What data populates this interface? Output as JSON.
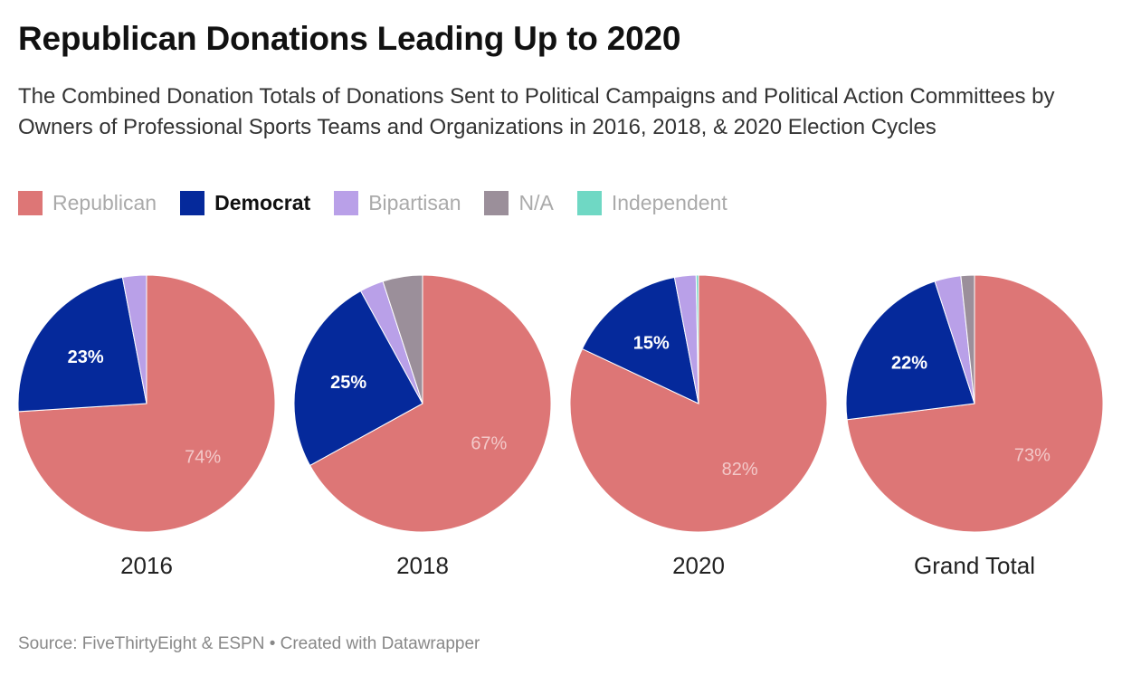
{
  "title": "Republican Donations Leading Up to 2020",
  "subtitle": "The Combined Donation Totals of Donations Sent to Political Campaigns and Political Action Committees by Owners of Professional Sports Teams and Organizations in 2016, 2018, & 2020 Election Cycles",
  "legend": [
    {
      "label": "Republican",
      "color": "#dd7676",
      "active": false
    },
    {
      "label": "Democrat",
      "color": "#05299b",
      "active": true
    },
    {
      "label": "Bipartisan",
      "color": "#b9a0e8",
      "active": false
    },
    {
      "label": "N/A",
      "color": "#9b8f9a",
      "active": false
    },
    {
      "label": "Independent",
      "color": "#6fd8c4",
      "active": false
    }
  ],
  "source": "Source: FiveThirtyEight & ESPN • Created with Datawrapper",
  "chart_data": [
    {
      "type": "pie",
      "title": "2016",
      "slices": [
        {
          "name": "Republican",
          "value": 74,
          "label": "74%"
        },
        {
          "name": "Democrat",
          "value": 23,
          "label": "23%"
        },
        {
          "name": "Bipartisan",
          "value": 3,
          "label": ""
        },
        {
          "name": "N/A",
          "value": 0,
          "label": ""
        },
        {
          "name": "Independent",
          "value": 0,
          "label": ""
        }
      ]
    },
    {
      "type": "pie",
      "title": "2018",
      "slices": [
        {
          "name": "Republican",
          "value": 67,
          "label": "67%"
        },
        {
          "name": "Democrat",
          "value": 25,
          "label": "25%"
        },
        {
          "name": "Bipartisan",
          "value": 3,
          "label": ""
        },
        {
          "name": "N/A",
          "value": 5,
          "label": ""
        },
        {
          "name": "Independent",
          "value": 0,
          "label": ""
        }
      ]
    },
    {
      "type": "pie",
      "title": "2020",
      "slices": [
        {
          "name": "Republican",
          "value": 82,
          "label": "82%"
        },
        {
          "name": "Democrat",
          "value": 15,
          "label": "15%"
        },
        {
          "name": "Bipartisan",
          "value": 2.7,
          "label": ""
        },
        {
          "name": "N/A",
          "value": 0,
          "label": ""
        },
        {
          "name": "Independent",
          "value": 0.3,
          "label": ""
        }
      ]
    },
    {
      "type": "pie",
      "title": "Grand Total",
      "slices": [
        {
          "name": "Republican",
          "value": 73,
          "label": "73%"
        },
        {
          "name": "Democrat",
          "value": 22,
          "label": "22%"
        },
        {
          "name": "Bipartisan",
          "value": 3.3,
          "label": ""
        },
        {
          "name": "N/A",
          "value": 1.7,
          "label": ""
        },
        {
          "name": "Independent",
          "value": 0,
          "label": ""
        }
      ]
    }
  ]
}
